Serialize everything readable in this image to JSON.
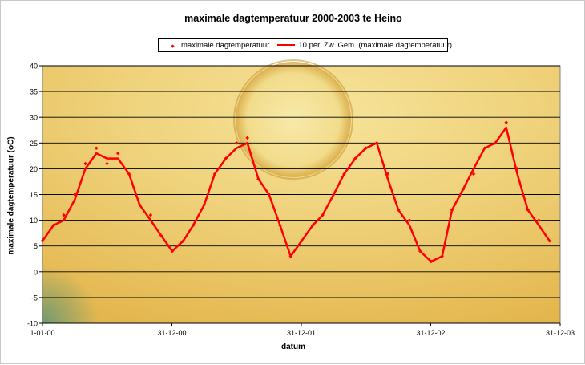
{
  "chart_data": {
    "type": "scatter",
    "title": "maximale dagtemperatuur 2000-2003 te Heino",
    "xlabel": "datum",
    "ylabel": "maximale dagtemperatuur (oC)",
    "ylim": [
      -10,
      40
    ],
    "yticks": [
      -10,
      -5,
      0,
      5,
      10,
      15,
      20,
      25,
      30,
      35,
      40
    ],
    "xlim": [
      "2000-01-01",
      "2003-12-31"
    ],
    "xtick_labels": [
      "1-01-00",
      "31-12-00",
      "31-12-01",
      "31-12-02",
      "31-12-03"
    ],
    "grid": true,
    "legend_position": "top-center",
    "legend": [
      "maximale dagtemperatuur",
      "10 per. Zw. Gem. (maximale dagtemperatuur)"
    ],
    "series": [
      {
        "name": "maximale dagtemperatuur",
        "style": "points",
        "color": "#ff0000",
        "x": [
          "2000-01-01",
          "2000-02-01",
          "2000-03-01",
          "2000-04-01",
          "2000-05-01",
          "2000-06-01",
          "2000-07-01",
          "2000-08-01",
          "2000-09-01",
          "2000-10-01",
          "2000-11-01",
          "2000-12-01",
          "2001-01-01",
          "2001-02-01",
          "2001-03-01",
          "2001-04-01",
          "2001-05-01",
          "2001-06-01",
          "2001-07-01",
          "2001-08-01",
          "2001-09-01",
          "2001-10-01",
          "2001-11-01",
          "2001-12-01",
          "2002-01-01",
          "2002-02-01",
          "2002-03-01",
          "2002-04-01",
          "2002-05-01",
          "2002-06-01",
          "2002-07-01",
          "2002-08-01",
          "2002-09-01",
          "2002-10-01",
          "2002-11-01",
          "2002-12-01",
          "2003-01-01",
          "2003-02-01",
          "2003-03-01",
          "2003-04-01",
          "2003-05-01",
          "2003-06-01",
          "2003-07-01",
          "2003-08-01",
          "2003-09-01",
          "2003-10-01",
          "2003-11-01",
          "2003-12-01"
        ],
        "values": [
          6,
          9,
          11,
          15,
          21,
          24,
          21,
          23,
          19,
          13,
          11,
          7,
          4,
          6,
          9,
          13,
          19,
          22,
          25,
          26,
          18,
          15,
          9,
          3,
          6,
          9,
          11,
          15,
          19,
          22,
          24,
          25,
          19,
          12,
          10,
          4,
          2,
          3,
          12,
          16,
          19,
          24,
          25,
          29,
          20,
          12,
          10,
          6
        ]
      },
      {
        "name": "10 per. Zw. Gem. (maximale dagtemperatuur)",
        "style": "line",
        "color": "#ff0000",
        "x": [
          "2000-01-01",
          "2000-02-01",
          "2000-03-01",
          "2000-04-01",
          "2000-05-01",
          "2000-06-01",
          "2000-07-01",
          "2000-08-01",
          "2000-09-01",
          "2000-10-01",
          "2000-11-01",
          "2000-12-01",
          "2001-01-01",
          "2001-02-01",
          "2001-03-01",
          "2001-04-01",
          "2001-05-01",
          "2001-06-01",
          "2001-07-01",
          "2001-08-01",
          "2001-09-01",
          "2001-10-01",
          "2001-11-01",
          "2001-12-01",
          "2002-01-01",
          "2002-02-01",
          "2002-03-01",
          "2002-04-01",
          "2002-05-01",
          "2002-06-01",
          "2002-07-01",
          "2002-08-01",
          "2002-09-01",
          "2002-10-01",
          "2002-11-01",
          "2002-12-01",
          "2003-01-01",
          "2003-02-01",
          "2003-03-01",
          "2003-04-01",
          "2003-05-01",
          "2003-06-01",
          "2003-07-01",
          "2003-08-01",
          "2003-09-01",
          "2003-10-01",
          "2003-11-01",
          "2003-12-01"
        ],
        "values": [
          6,
          9,
          10,
          14,
          20,
          23,
          22,
          22,
          19,
          13,
          10,
          7,
          4,
          6,
          9,
          13,
          19,
          22,
          24,
          25,
          18,
          15,
          9,
          3,
          6,
          9,
          11,
          15,
          19,
          22,
          24,
          25,
          18,
          12,
          9,
          4,
          2,
          3,
          12,
          16,
          20,
          24,
          25,
          28,
          19,
          12,
          9,
          6
        ]
      }
    ]
  }
}
